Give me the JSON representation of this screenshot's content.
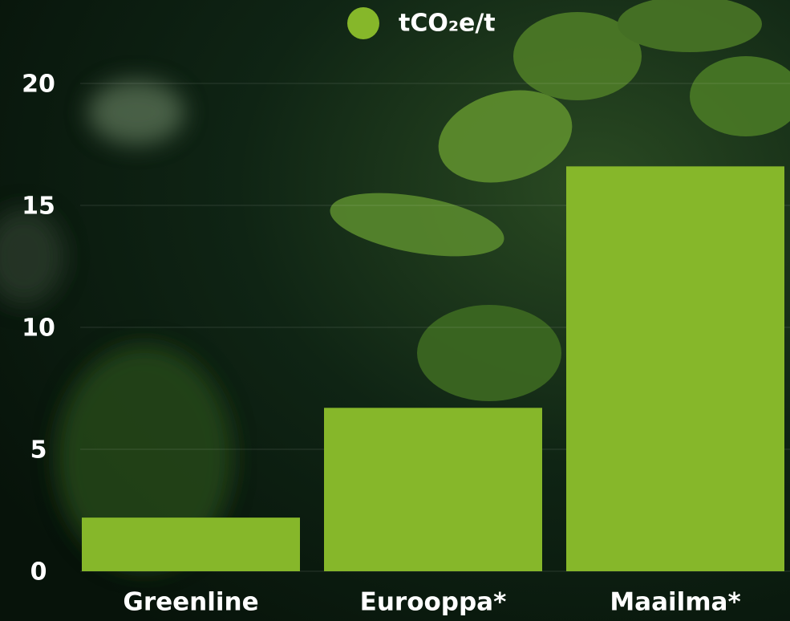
{
  "chart_data": {
    "type": "bar",
    "categories": [
      "Greenline",
      "Eurooppa*",
      "Maailma*"
    ],
    "series": [
      {
        "name": "tCO₂e/t",
        "color": "#86b72a",
        "values": [
          2.2,
          6.7,
          16.6
        ]
      }
    ],
    "ylim": [
      0,
      20
    ],
    "yticks": [
      0,
      5,
      10,
      15,
      20
    ],
    "grid": true,
    "legend": "top"
  }
}
